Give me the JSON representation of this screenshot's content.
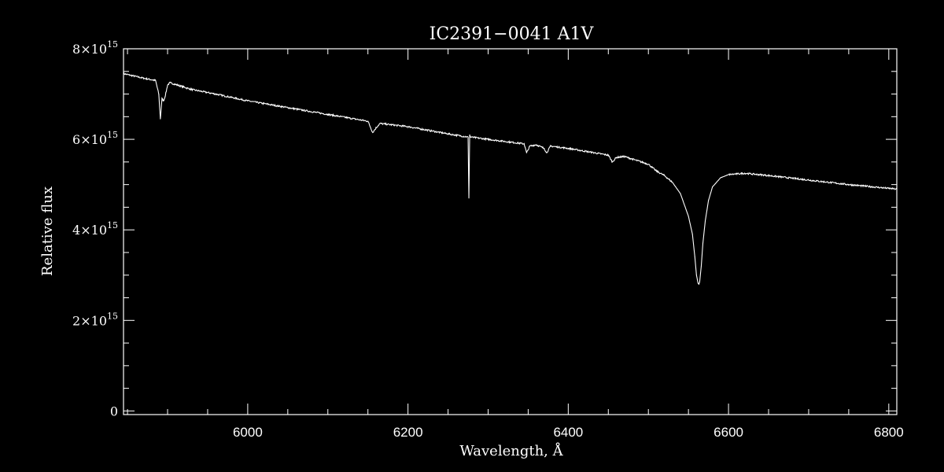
{
  "chart_data": {
    "type": "line",
    "title": "IC2391−0041   A1V",
    "xlabel": "Wavelength, Å",
    "ylabel": "Relative flux",
    "xlim": [
      5845,
      6810
    ],
    "ylim": [
      -80000000000000.0,
      8000000000000000.0
    ],
    "x_ticks": [
      {
        "value": 6000,
        "label": "6000"
      },
      {
        "value": 6200,
        "label": "6200"
      },
      {
        "value": 6400,
        "label": "6400"
      },
      {
        "value": 6600,
        "label": "6600"
      },
      {
        "value": 6800,
        "label": "6800"
      }
    ],
    "y_ticks": [
      {
        "value": 0,
        "mant": "0",
        "exp": ""
      },
      {
        "value": 2000000000000000.0,
        "mant": "2×10",
        "exp": "15"
      },
      {
        "value": 4000000000000000.0,
        "mant": "4×10",
        "exp": "15"
      },
      {
        "value": 6000000000000000.0,
        "mant": "6×10",
        "exp": "15"
      },
      {
        "value": 8000000000000000.0,
        "mant": "8×10",
        "exp": "15"
      }
    ],
    "x_minor_step": 50,
    "y_minor_step": 500000000000000.0,
    "grid": false,
    "colors": {
      "background": "#000000",
      "foreground": "#ffffff"
    },
    "series": [
      {
        "x": [
          5845,
          5870,
          5885,
          5889,
          5891,
          5893,
          5895,
          5897,
          5900,
          5903,
          5930,
          5960,
          6000,
          6050,
          6100,
          6150,
          6156,
          6160,
          6165,
          6200,
          6250,
          6275,
          6276,
          6277,
          6278,
          6300,
          6345,
          6348,
          6352,
          6360,
          6370,
          6373,
          6378,
          6400,
          6450,
          6455,
          6460,
          6470,
          6500,
          6510,
          6520,
          6530,
          6540,
          6550,
          6555,
          6558,
          6560,
          6562,
          6563,
          6564,
          6566,
          6568,
          6571,
          6575,
          6580,
          6590,
          6600,
          6620,
          6650,
          6700,
          6750,
          6810
        ],
        "y": [
          7450000000000000.0,
          7350000000000000.0,
          7300000000000000.0,
          7000000000000000.0,
          6450000000000000.0,
          6900000000000000.0,
          6850000000000000.0,
          6950000000000000.0,
          7200000000000000.0,
          7250000000000000.0,
          7100000000000000.0,
          7000000000000000.0,
          6850000000000000.0,
          6700000000000000.0,
          6550000000000000.0,
          6400000000000000.0,
          6150000000000000.0,
          6250000000000000.0,
          6350000000000000.0,
          6280000000000000.0,
          6120000000000000.0,
          6050000000000000.0,
          4700000000000000.0,
          6100000000000000.0,
          6050000000000000.0,
          6000000000000000.0,
          5900000000000000.0,
          5700000000000000.0,
          5850000000000000.0,
          5880000000000000.0,
          5800000000000000.0,
          5700000000000000.0,
          5850000000000000.0,
          5800000000000000.0,
          5650000000000000.0,
          5500000000000000.0,
          5600000000000000.0,
          5620000000000000.0,
          5450000000000000.0,
          5300000000000000.0,
          5200000000000000.0,
          5050000000000000.0,
          4800000000000000.0,
          4300000000000000.0,
          3900000000000000.0,
          3400000000000000.0,
          3000000000000000.0,
          2820000000000000.0,
          2800000000000000.0,
          2850000000000000.0,
          3200000000000000.0,
          3700000000000000.0,
          4200000000000000.0,
          4650000000000000.0,
          4950000000000000.0,
          5150000000000000.0,
          5220000000000000.0,
          5250000000000000.0,
          5200000000000000.0,
          5100000000000000.0,
          5000000000000000.0,
          4900000000000000.0
        ]
      }
    ]
  }
}
